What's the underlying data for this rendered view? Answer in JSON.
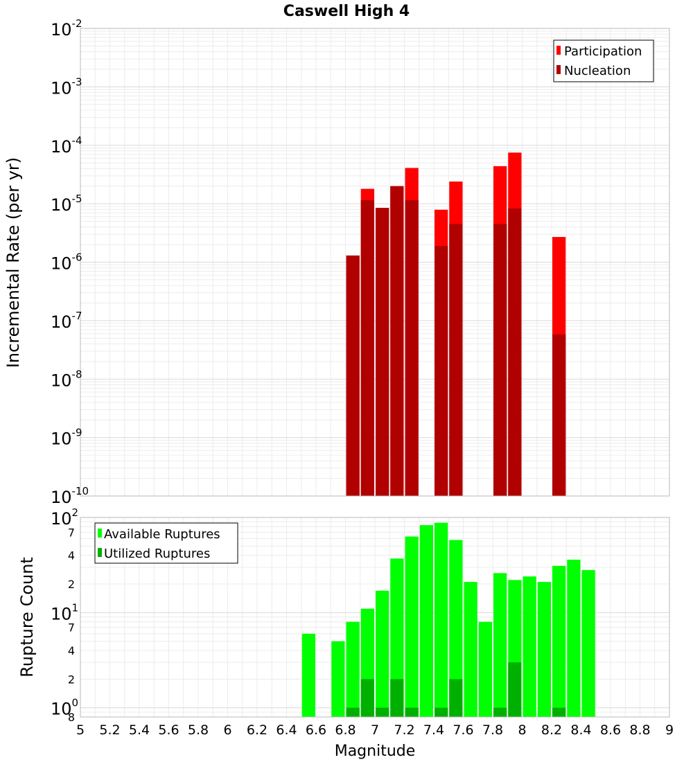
{
  "title": "Caswell High 4",
  "x_label": "Magnitude",
  "x_ticks": [
    "5",
    "5.2",
    "5.4",
    "5.6",
    "5.8",
    "6",
    "6.2",
    "6.4",
    "6.6",
    "6.8",
    "7",
    "7.2",
    "7.4",
    "7.6",
    "7.8",
    "8",
    "8.2",
    "8.4",
    "8.6",
    "8.8",
    "9"
  ],
  "chart_data": [
    {
      "type": "bar",
      "title": "Caswell High 4",
      "xlabel": "Magnitude",
      "ylabel": "Incremental Rate (per yr)",
      "y_scale": "log",
      "xlim": [
        5,
        9
      ],
      "ylim": [
        1e-10,
        0.01
      ],
      "bar_width": 0.1,
      "grid": true,
      "legend_position": "top-right",
      "y_ticks": [
        {
          "base": "10",
          "exp": "-2",
          "value": 0.01
        },
        {
          "base": "10",
          "exp": "-3",
          "value": 0.001
        },
        {
          "base": "10",
          "exp": "-4",
          "value": 0.0001
        },
        {
          "base": "10",
          "exp": "-5",
          "value": 1e-05
        },
        {
          "base": "10",
          "exp": "-6",
          "value": 1e-06
        },
        {
          "base": "10",
          "exp": "-7",
          "value": 1e-07
        },
        {
          "base": "10",
          "exp": "-8",
          "value": 1e-08
        },
        {
          "base": "10",
          "exp": "-9",
          "value": 1e-09
        },
        {
          "base": "10",
          "exp": "-10",
          "value": 1e-10
        }
      ],
      "series": [
        {
          "name": "Participation",
          "color": "#ff0000",
          "x": [
            6.85,
            6.95,
            7.05,
            7.15,
            7.25,
            7.45,
            7.55,
            7.85,
            7.95,
            8.25
          ],
          "values": [
            1.3e-06,
            1.8e-05,
            8.5e-06,
            2e-05,
            4.1e-05,
            7.9e-06,
            2.4e-05,
            4.4e-05,
            7.5e-05,
            2.7e-06
          ]
        },
        {
          "name": "Nucleation",
          "color": "#b00000",
          "x": [
            6.85,
            6.95,
            7.05,
            7.15,
            7.25,
            7.45,
            7.55,
            7.85,
            7.95,
            8.25
          ],
          "values": [
            1.3e-06,
            1.15e-05,
            8.5e-06,
            2e-05,
            1.15e-05,
            1.9e-06,
            4.5e-06,
            4.5e-06,
            8.3e-06,
            5.8e-08
          ]
        }
      ]
    },
    {
      "type": "bar",
      "xlabel": "Magnitude",
      "ylabel": "Rupture Count",
      "y_scale": "log",
      "xlim": [
        5,
        9
      ],
      "ylim": [
        0.8,
        100
      ],
      "bar_width": 0.1,
      "grid": true,
      "legend_position": "top-left",
      "y_ticks": [
        {
          "base": "10",
          "exp": "2",
          "value": 100
        },
        {
          "base": "10",
          "exp": "1",
          "value": 10
        },
        {
          "base": "10",
          "exp": "0",
          "value": 1
        }
      ],
      "y_minor_ticks": [
        {
          "label": "7",
          "value": 70
        },
        {
          "label": "4",
          "value": 40
        },
        {
          "label": "2",
          "value": 20
        },
        {
          "label": "7",
          "value": 7
        },
        {
          "label": "4",
          "value": 4
        },
        {
          "label": "2",
          "value": 2
        },
        {
          "label": "8",
          "value": 0.8
        }
      ],
      "series": [
        {
          "name": "Available Ruptures",
          "color": "#00ff00",
          "x": [
            6.55,
            6.75,
            6.85,
            6.95,
            7.05,
            7.15,
            7.25,
            7.35,
            7.45,
            7.55,
            7.65,
            7.75,
            7.85,
            7.95,
            8.05,
            8.15,
            8.25,
            8.35,
            8.45
          ],
          "values": [
            6,
            5,
            8,
            11,
            17,
            37,
            63,
            83,
            88,
            58,
            21,
            8,
            26,
            22,
            24,
            21,
            31,
            36,
            28
          ]
        },
        {
          "name": "Utilized Ruptures",
          "color": "#00b000",
          "x": [
            6.85,
            6.95,
            7.05,
            7.15,
            7.25,
            7.45,
            7.55,
            7.85,
            7.95,
            8.25
          ],
          "values": [
            1,
            2,
            1,
            2,
            1,
            1,
            2,
            1,
            3,
            1
          ]
        }
      ]
    }
  ]
}
